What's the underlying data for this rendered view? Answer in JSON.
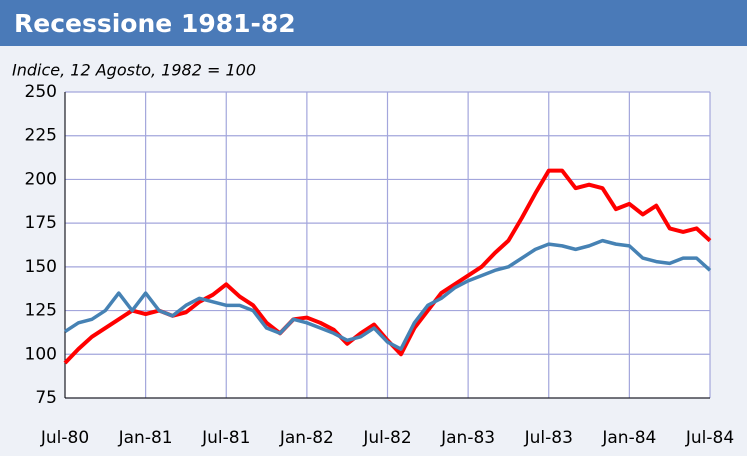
{
  "chart_data": {
    "type": "line",
    "title": "Recessione 1981-82",
    "subtitle": "Indice, 12 Agosto, 1982 = 100",
    "categories": [
      "Jul-80",
      null,
      null,
      null,
      null,
      null,
      "Jan-81",
      null,
      null,
      null,
      null,
      null,
      "Jul-81",
      null,
      null,
      null,
      null,
      null,
      "Jan-82",
      null,
      null,
      null,
      null,
      null,
      "Jul-82",
      null,
      null,
      null,
      null,
      null,
      "Jan-83",
      null,
      null,
      null,
      null,
      null,
      "Jul-83",
      null,
      null,
      null,
      null,
      null,
      "Jan-84",
      null,
      null,
      null,
      null,
      null,
      "Jul-84"
    ],
    "series": [
      {
        "color": "#ff0000",
        "values": [
          95,
          103,
          110,
          115,
          120,
          125,
          123,
          125,
          122,
          124,
          130,
          134,
          140,
          133,
          128,
          118,
          112,
          120,
          121,
          118,
          114,
          106,
          112,
          117,
          108,
          100,
          115,
          125,
          135,
          140,
          145,
          150,
          158,
          165,
          178,
          192,
          205,
          205,
          195,
          197,
          195,
          183,
          186,
          180,
          185,
          172,
          170,
          172,
          165
        ]
      },
      {
        "color": "#4682b4",
        "values": [
          113,
          118,
          120,
          125,
          135,
          125,
          135,
          125,
          122,
          128,
          132,
          130,
          128,
          128,
          125,
          115,
          112,
          120,
          118,
          115,
          112,
          108,
          110,
          115,
          107,
          103,
          118,
          128,
          132,
          138,
          142,
          145,
          148,
          150,
          155,
          160,
          163,
          162,
          160,
          162,
          165,
          163,
          162,
          155,
          153,
          152,
          155,
          155,
          148
        ]
      }
    ],
    "ylim": [
      75,
      250
    ],
    "yticks": [
      75,
      100,
      125,
      150,
      175,
      200,
      225,
      250
    ],
    "grid": true
  }
}
